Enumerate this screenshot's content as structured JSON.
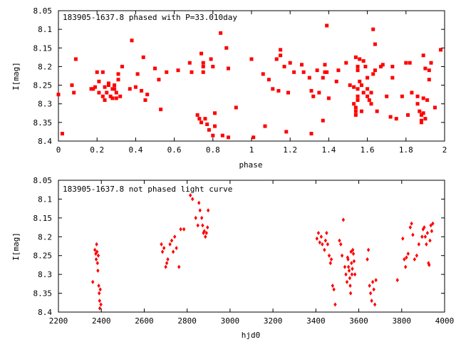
{
  "chart_data": [
    {
      "type": "scatter",
      "title": "183905-1637.8 phased with P=33.010day",
      "xlabel": "phase",
      "ylabel": "I[mag]",
      "xlim": [
        0,
        2
      ],
      "ylim": [
        8.4,
        8.05
      ],
      "y_inverted": true,
      "grid": false,
      "x_ticks": [
        "0",
        "0.2",
        "0.4",
        "0.6",
        "0.8",
        "1",
        "1.2",
        "1.4",
        "1.6",
        "1.8",
        "2"
      ],
      "y_ticks": [
        "8.05",
        "8.1",
        "8.15",
        "8.2",
        "8.25",
        "8.3",
        "8.35",
        "8.4"
      ],
      "color": "#ff0000",
      "marker": "filled-square",
      "series": [
        {
          "points": [
            [
              0.0,
              8.275
            ],
            [
              0.02,
              8.38
            ],
            [
              0.07,
              8.25
            ],
            [
              0.08,
              8.27
            ],
            [
              0.09,
              8.18
            ],
            [
              0.17,
              8.26
            ],
            [
              0.18,
              8.26
            ],
            [
              0.19,
              8.255
            ],
            [
              0.2,
              8.215
            ],
            [
              0.21,
              8.27
            ],
            [
              0.21,
              8.24
            ],
            [
              0.23,
              8.215
            ],
            [
              0.23,
              8.28
            ],
            [
              0.24,
              8.255
            ],
            [
              0.24,
              8.29
            ],
            [
              0.25,
              8.27
            ],
            [
              0.26,
              8.245
            ],
            [
              0.26,
              8.25
            ],
            [
              0.27,
              8.28
            ],
            [
              0.28,
              8.285
            ],
            [
              0.28,
              8.26
            ],
            [
              0.29,
              8.25
            ],
            [
              0.29,
              8.26
            ],
            [
              0.3,
              8.285
            ],
            [
              0.3,
              8.27
            ],
            [
              0.31,
              8.22
            ],
            [
              0.31,
              8.235
            ],
            [
              0.32,
              8.28
            ],
            [
              0.33,
              8.2
            ],
            [
              0.37,
              8.26
            ],
            [
              0.38,
              8.13
            ],
            [
              0.4,
              8.255
            ],
            [
              0.41,
              8.22
            ],
            [
              0.43,
              8.265
            ],
            [
              0.44,
              8.175
            ],
            [
              0.45,
              8.29
            ],
            [
              0.46,
              8.275
            ],
            [
              0.5,
              8.205
            ],
            [
              0.52,
              8.235
            ],
            [
              0.53,
              8.315
            ],
            [
              0.56,
              8.215
            ],
            [
              0.62,
              8.21
            ],
            [
              0.68,
              8.19
            ],
            [
              0.69,
              8.215
            ],
            [
              0.72,
              8.33
            ],
            [
              0.73,
              8.34
            ],
            [
              0.74,
              8.35
            ],
            [
              0.74,
              8.165
            ],
            [
              0.75,
              8.19
            ],
            [
              0.75,
              8.2
            ],
            [
              0.75,
              8.215
            ],
            [
              0.76,
              8.34
            ],
            [
              0.77,
              8.355
            ],
            [
              0.78,
              8.37
            ],
            [
              0.79,
              8.18
            ],
            [
              0.8,
              8.2
            ],
            [
              0.8,
              8.385
            ],
            [
              0.81,
              8.325
            ],
            [
              0.81,
              8.36
            ],
            [
              0.84,
              8.11
            ],
            [
              0.85,
              8.385
            ],
            [
              0.87,
              8.15
            ],
            [
              0.88,
              8.205
            ],
            [
              0.88,
              8.39
            ],
            [
              0.92,
              8.31
            ],
            [
              1.0,
              8.18
            ],
            [
              1.01,
              8.39
            ],
            [
              1.06,
              8.22
            ],
            [
              1.07,
              8.36
            ],
            [
              1.09,
              8.235
            ],
            [
              1.11,
              8.26
            ],
            [
              1.13,
              8.18
            ],
            [
              1.14,
              8.265
            ],
            [
              1.15,
              8.155
            ],
            [
              1.15,
              8.17
            ],
            [
              1.17,
              8.2
            ],
            [
              1.18,
              8.375
            ],
            [
              1.19,
              8.27
            ],
            [
              1.2,
              8.19
            ],
            [
              1.22,
              8.215
            ],
            [
              1.26,
              8.195
            ],
            [
              1.27,
              8.215
            ],
            [
              1.3,
              8.23
            ],
            [
              1.31,
              8.265
            ],
            [
              1.31,
              8.38
            ],
            [
              1.32,
              8.28
            ],
            [
              1.34,
              8.21
            ],
            [
              1.35,
              8.27
            ],
            [
              1.37,
              8.23
            ],
            [
              1.37,
              8.345
            ],
            [
              1.38,
              8.215
            ],
            [
              1.38,
              8.195
            ],
            [
              1.39,
              8.09
            ],
            [
              1.39,
              8.215
            ],
            [
              1.4,
              8.285
            ],
            [
              1.44,
              8.24
            ],
            [
              1.45,
              8.21
            ],
            [
              1.49,
              8.19
            ],
            [
              1.51,
              8.25
            ],
            [
              1.53,
              8.255
            ],
            [
              1.53,
              8.3
            ],
            [
              1.54,
              8.175
            ],
            [
              1.54,
              8.31
            ],
            [
              1.54,
              8.32
            ],
            [
              1.54,
              8.33
            ],
            [
              1.55,
              8.2
            ],
            [
              1.55,
              8.21
            ],
            [
              1.55,
              8.26
            ],
            [
              1.55,
              8.28
            ],
            [
              1.55,
              8.29
            ],
            [
              1.56,
              8.18
            ],
            [
              1.56,
              8.24
            ],
            [
              1.57,
              8.25
            ],
            [
              1.57,
              8.32
            ],
            [
              1.58,
              8.185
            ],
            [
              1.58,
              8.27
            ],
            [
              1.59,
              8.2
            ],
            [
              1.6,
              8.23
            ],
            [
              1.6,
              8.26
            ],
            [
              1.6,
              8.28
            ],
            [
              1.61,
              8.29
            ],
            [
              1.62,
              8.27
            ],
            [
              1.62,
              8.3
            ],
            [
              1.63,
              8.22
            ],
            [
              1.63,
              8.1
            ],
            [
              1.64,
              8.21
            ],
            [
              1.64,
              8.14
            ],
            [
              1.65,
              8.32
            ],
            [
              1.67,
              8.2
            ],
            [
              1.68,
              8.195
            ],
            [
              1.7,
              8.28
            ],
            [
              1.72,
              8.335
            ],
            [
              1.73,
              8.23
            ],
            [
              1.73,
              8.2
            ],
            [
              1.75,
              8.34
            ],
            [
              1.78,
              8.28
            ],
            [
              1.8,
              8.19
            ],
            [
              1.81,
              8.33
            ],
            [
              1.82,
              8.19
            ],
            [
              1.83,
              8.27
            ],
            [
              1.86,
              8.28
            ],
            [
              1.86,
              8.3
            ],
            [
              1.87,
              8.32
            ],
            [
              1.88,
              8.33
            ],
            [
              1.88,
              8.345
            ],
            [
              1.88,
              8.35
            ],
            [
              1.89,
              8.285
            ],
            [
              1.89,
              8.17
            ],
            [
              1.89,
              8.325
            ],
            [
              1.9,
              8.34
            ],
            [
              1.9,
              8.205
            ],
            [
              1.91,
              8.29
            ],
            [
              1.92,
              8.235
            ],
            [
              1.92,
              8.21
            ],
            [
              1.93,
              8.19
            ],
            [
              1.95,
              8.31
            ],
            [
              1.98,
              8.155
            ]
          ]
        }
      ]
    },
    {
      "type": "scatter",
      "title": "183905-1637.8 not phased light curve",
      "xlabel": "hjd0",
      "ylabel": "I[mag]",
      "xlim": [
        2200,
        4000
      ],
      "ylim": [
        8.4,
        8.05
      ],
      "y_inverted": true,
      "grid": false,
      "x_ticks": [
        "2200",
        "2400",
        "2600",
        "2800",
        "3000",
        "3200",
        "3400",
        "3600",
        "3800",
        "4000"
      ],
      "y_ticks": [
        "8.05",
        "8.1",
        "8.15",
        "8.2",
        "8.25",
        "8.3",
        "8.35",
        "8.4"
      ],
      "color": "#ff0000",
      "marker": "diamond",
      "series": [
        {
          "points": [
            [
              2360,
              8.32
            ],
            [
              2370,
              8.235
            ],
            [
              2374,
              8.245
            ],
            [
              2376,
              8.26
            ],
            [
              2378,
              8.22
            ],
            [
              2380,
              8.24
            ],
            [
              2382,
              8.27
            ],
            [
              2384,
              8.29
            ],
            [
              2386,
              8.25
            ],
            [
              2388,
              8.33
            ],
            [
              2390,
              8.35
            ],
            [
              2392,
              8.37
            ],
            [
              2393,
              8.39
            ],
            [
              2395,
              8.34
            ],
            [
              2398,
              8.38
            ],
            [
              2680,
              8.22
            ],
            [
              2685,
              8.24
            ],
            [
              2692,
              8.23
            ],
            [
              2700,
              8.28
            ],
            [
              2705,
              8.27
            ],
            [
              2710,
              8.26
            ],
            [
              2720,
              8.22
            ],
            [
              2728,
              8.21
            ],
            [
              2735,
              8.24
            ],
            [
              2742,
              8.2
            ],
            [
              2750,
              8.23
            ],
            [
              2762,
              8.28
            ],
            [
              2770,
              8.18
            ],
            [
              2785,
              8.18
            ],
            [
              2815,
              8.09
            ],
            [
              2825,
              8.1
            ],
            [
              2840,
              8.15
            ],
            [
              2850,
              8.17
            ],
            [
              2855,
              8.11
            ],
            [
              2860,
              8.13
            ],
            [
              2868,
              8.15
            ],
            [
              2872,
              8.17
            ],
            [
              2876,
              8.19
            ],
            [
              2880,
              8.185
            ],
            [
              2885,
              8.2
            ],
            [
              2890,
              8.19
            ],
            [
              2895,
              8.175
            ],
            [
              2898,
              8.13
            ],
            [
              3405,
              8.205
            ],
            [
              3412,
              8.19
            ],
            [
              3418,
              8.215
            ],
            [
              3425,
              8.2
            ],
            [
              3430,
              8.22
            ],
            [
              3440,
              8.235
            ],
            [
              3445,
              8.21
            ],
            [
              3450,
              8.19
            ],
            [
              3455,
              8.22
            ],
            [
              3462,
              8.25
            ],
            [
              3468,
              8.27
            ],
            [
              3472,
              8.26
            ],
            [
              3478,
              8.33
            ],
            [
              3484,
              8.34
            ],
            [
              3490,
              8.38
            ],
            [
              3510,
              8.21
            ],
            [
              3516,
              8.22
            ],
            [
              3522,
              8.25
            ],
            [
              3528,
              8.155
            ],
            [
              3535,
              8.28
            ],
            [
              3540,
              8.3
            ],
            [
              3545,
              8.32
            ],
            [
              3548,
              8.255
            ],
            [
              3550,
              8.26
            ],
            [
              3552,
              8.28
            ],
            [
              3555,
              8.29
            ],
            [
              3558,
              8.31
            ],
            [
              3560,
              8.33
            ],
            [
              3562,
              8.35
            ],
            [
              3564,
              8.24
            ],
            [
              3566,
              8.27
            ],
            [
              3568,
              8.3
            ],
            [
              3570,
              8.285
            ],
            [
              3572,
              8.235
            ],
            [
              3575,
              8.245
            ],
            [
              3578,
              8.265
            ],
            [
              3582,
              8.3
            ],
            [
              3640,
              8.26
            ],
            [
              3645,
              8.235
            ],
            [
              3650,
              8.33
            ],
            [
              3655,
              8.35
            ],
            [
              3660,
              8.37
            ],
            [
              3665,
              8.32
            ],
            [
              3670,
              8.34
            ],
            [
              3675,
              8.38
            ],
            [
              3680,
              8.315
            ],
            [
              3780,
              8.315
            ],
            [
              3805,
              8.205
            ],
            [
              3812,
              8.26
            ],
            [
              3818,
              8.28
            ],
            [
              3822,
              8.255
            ],
            [
              3830,
              8.245
            ],
            [
              3840,
              8.175
            ],
            [
              3846,
              8.165
            ],
            [
              3852,
              8.195
            ],
            [
              3860,
              8.26
            ],
            [
              3870,
              8.25
            ],
            [
              3880,
              8.22
            ],
            [
              3895,
              8.2
            ],
            [
              3900,
              8.18
            ],
            [
              3905,
              8.175
            ],
            [
              3910,
              8.2
            ],
            [
              3915,
              8.22
            ],
            [
              3920,
              8.19
            ],
            [
              3925,
              8.27
            ],
            [
              3928,
              8.275
            ],
            [
              3932,
              8.21
            ],
            [
              3936,
              8.17
            ],
            [
              3940,
              8.185
            ],
            [
              3945,
              8.165
            ]
          ]
        }
      ]
    }
  ]
}
